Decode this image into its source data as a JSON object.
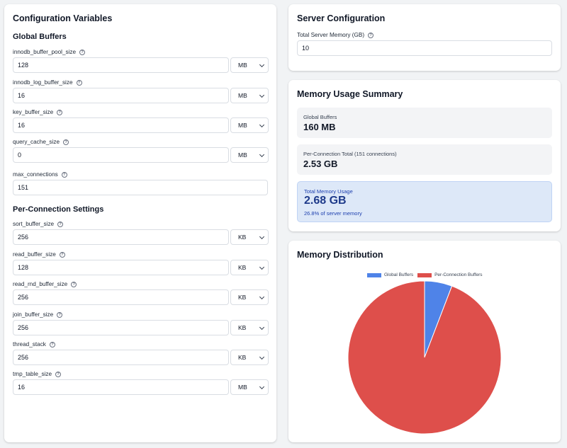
{
  "config": {
    "title": "Configuration Variables",
    "global_title": "Global Buffers",
    "per_conn_title": "Per-Connection Settings",
    "fields": [
      {
        "label": "innodb_buffer_pool_size",
        "value": "128",
        "unit": "MB"
      },
      {
        "label": "innodb_log_buffer_size",
        "value": "16",
        "unit": "MB"
      },
      {
        "label": "key_buffer_size",
        "value": "16",
        "unit": "MB"
      },
      {
        "label": "query_cache_size",
        "value": "0",
        "unit": "MB"
      },
      {
        "label": "max_connections",
        "value": "151"
      },
      {
        "label": "sort_buffer_size",
        "value": "256",
        "unit": "KB"
      },
      {
        "label": "read_buffer_size",
        "value": "128",
        "unit": "KB"
      },
      {
        "label": "read_rnd_buffer_size",
        "value": "256",
        "unit": "KB"
      },
      {
        "label": "join_buffer_size",
        "value": "256",
        "unit": "KB"
      },
      {
        "label": "thread_stack",
        "value": "256",
        "unit": "KB"
      },
      {
        "label": "tmp_table_size",
        "value": "16",
        "unit": "MB"
      }
    ]
  },
  "server": {
    "title": "Server Configuration",
    "memory_label": "Total Server Memory (GB)",
    "memory_value": "10"
  },
  "summary": {
    "title": "Memory Usage Summary",
    "global_label": "Global Buffers",
    "global_value": "160 MB",
    "per_conn_label": "Per-Connection Total (151 connections)",
    "per_conn_value": "2.53 GB",
    "total_label": "Total Memory Usage",
    "total_value": "2.68 GB",
    "total_sub": "26.8% of server memory"
  },
  "chart_data": {
    "type": "pie",
    "title": "Memory Distribution",
    "legend_position": "top",
    "categories": [
      "Global Buffers",
      "Per-Connection Buffers"
    ],
    "values": [
      160,
      2590
    ],
    "colors": [
      "#4f83e8",
      "#de4f4b"
    ]
  },
  "icons": {
    "help": "help-circle-icon",
    "select": "chevron-down-icon"
  }
}
